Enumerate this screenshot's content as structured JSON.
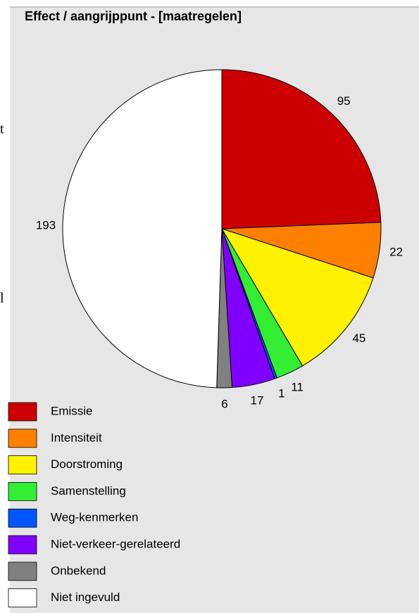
{
  "chart_data": {
    "type": "pie",
    "title": "Effect / aangrijppunt - [maatregelen]",
    "categories": [
      "Emissie",
      "Intensiteit",
      "Doorstroming",
      "Samenstelling",
      "Weg-kenmerken",
      "Niet-verkeer-gerelateerd",
      "Onbekend",
      "Niet ingevuld"
    ],
    "values": [
      95,
      22,
      45,
      11,
      1,
      17,
      6,
      193
    ],
    "colors": [
      "#cc0000",
      "#ff8000",
      "#fff200",
      "#33ee33",
      "#0055ff",
      "#8000ff",
      "#808080",
      "#ffffff"
    ],
    "legend": "bottom-left"
  },
  "side_text": [
    "t",
    "l"
  ]
}
